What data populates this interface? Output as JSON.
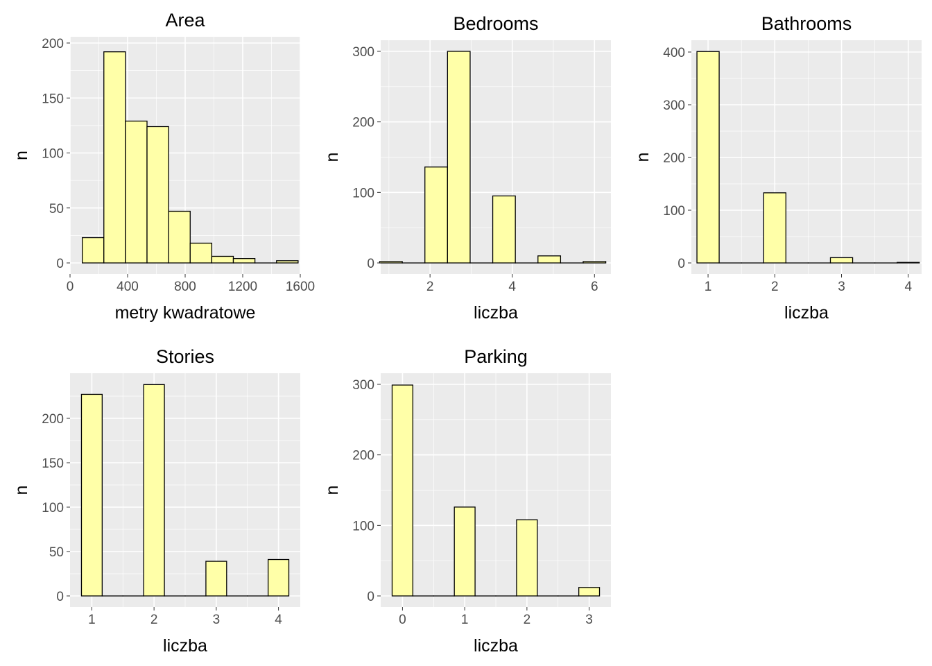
{
  "colors": {
    "panel_bg": "#EBEBEB",
    "grid": "#FFFFFF",
    "bar_fill": "#FFFFA8",
    "bar_stroke": "#000000",
    "tick_text": "#4D4D4D",
    "title_text": "#000000"
  },
  "chart_data": [
    {
      "type": "bar",
      "title": "Area",
      "xlabel": "metry kwadratowe",
      "ylabel": "n",
      "xlim": [
        0,
        1600
      ],
      "ylim": [
        0,
        200
      ],
      "x_ticks": [
        0,
        400,
        800,
        1200,
        1600
      ],
      "x_tick_labels": [
        "0",
        "400",
        "800",
        "1200",
        "1600"
      ],
      "y_ticks": [
        0,
        50,
        100,
        150,
        200
      ],
      "y_tick_labels": [
        "0",
        "50",
        "100",
        "150",
        "200"
      ],
      "bar_width": 150,
      "bars": [
        {
          "x": 160,
          "value": 23
        },
        {
          "x": 310,
          "value": 192
        },
        {
          "x": 460,
          "value": 129
        },
        {
          "x": 610,
          "value": 124
        },
        {
          "x": 760,
          "value": 47
        },
        {
          "x": 910,
          "value": 18
        },
        {
          "x": 1060,
          "value": 6
        },
        {
          "x": 1210,
          "value": 4
        },
        {
          "x": 1360,
          "value": 0
        },
        {
          "x": 1510,
          "value": 2
        }
      ]
    },
    {
      "type": "bar",
      "title": "Bedrooms",
      "xlabel": "liczba",
      "ylabel": "n",
      "xlim": [
        0.8,
        6.4
      ],
      "ylim": [
        0,
        300
      ],
      "x_ticks": [
        2,
        4,
        6
      ],
      "x_tick_labels": [
        "2",
        "4",
        "6"
      ],
      "y_ticks": [
        0,
        100,
        200,
        300
      ],
      "y_tick_labels": [
        "0",
        "100",
        "200",
        "300"
      ],
      "bar_width": 0.55,
      "bars": [
        {
          "x": 1.05,
          "value": 2
        },
        {
          "x": 1.6,
          "value": 0
        },
        {
          "x": 2.15,
          "value": 136
        },
        {
          "x": 2.7,
          "value": 300
        },
        {
          "x": 3.25,
          "value": 0
        },
        {
          "x": 3.8,
          "value": 95
        },
        {
          "x": 4.35,
          "value": 0
        },
        {
          "x": 4.9,
          "value": 10
        },
        {
          "x": 5.45,
          "value": 0
        },
        {
          "x": 6.0,
          "value": 2
        }
      ]
    },
    {
      "type": "bar",
      "title": "Bathrooms",
      "xlabel": "liczba",
      "ylabel": "n",
      "xlim": [
        0.75,
        4.2
      ],
      "ylim": [
        0,
        400
      ],
      "x_ticks": [
        1,
        2,
        3,
        4
      ],
      "x_tick_labels": [
        "1",
        "2",
        "3",
        "4"
      ],
      "y_ticks": [
        0,
        100,
        200,
        300,
        400
      ],
      "y_tick_labels": [
        "0",
        "100",
        "200",
        "300",
        "400"
      ],
      "bar_width": 0.333,
      "bars": [
        {
          "x": 1.0,
          "value": 401
        },
        {
          "x": 1.333,
          "value": 0
        },
        {
          "x": 1.667,
          "value": 0
        },
        {
          "x": 2.0,
          "value": 133
        },
        {
          "x": 2.333,
          "value": 0
        },
        {
          "x": 2.667,
          "value": 0
        },
        {
          "x": 3.0,
          "value": 10
        },
        {
          "x": 3.333,
          "value": 0
        },
        {
          "x": 3.667,
          "value": 0
        },
        {
          "x": 4.0,
          "value": 1
        }
      ]
    },
    {
      "type": "bar",
      "title": "Stories",
      "xlabel": "liczba",
      "ylabel": "n",
      "xlim": [
        0.65,
        4.35
      ],
      "ylim": [
        0,
        240
      ],
      "x_ticks": [
        1,
        2,
        3,
        4
      ],
      "x_tick_labels": [
        "1",
        "2",
        "3",
        "4"
      ],
      "y_ticks": [
        0,
        50,
        100,
        150,
        200
      ],
      "y_tick_labels": [
        "0",
        "50",
        "100",
        "150",
        "200"
      ],
      "bar_width": 0.333,
      "bars": [
        {
          "x": 1.0,
          "value": 227
        },
        {
          "x": 1.333,
          "value": 0
        },
        {
          "x": 1.667,
          "value": 0
        },
        {
          "x": 2.0,
          "value": 238
        },
        {
          "x": 2.333,
          "value": 0
        },
        {
          "x": 2.667,
          "value": 0
        },
        {
          "x": 3.0,
          "value": 39
        },
        {
          "x": 3.333,
          "value": 0
        },
        {
          "x": 3.667,
          "value": 0
        },
        {
          "x": 4.0,
          "value": 41
        }
      ]
    },
    {
      "type": "bar",
      "title": "Parking",
      "xlabel": "liczba",
      "ylabel": "n",
      "xlim": [
        -0.35,
        3.35
      ],
      "ylim": [
        0,
        300
      ],
      "x_ticks": [
        0,
        1,
        2,
        3
      ],
      "x_tick_labels": [
        "0",
        "1",
        "2",
        "3"
      ],
      "y_ticks": [
        0,
        100,
        200,
        300
      ],
      "y_tick_labels": [
        "0",
        "100",
        "200",
        "300"
      ],
      "bar_width": 0.333,
      "bars": [
        {
          "x": 0.0,
          "value": 299
        },
        {
          "x": 0.333,
          "value": 0
        },
        {
          "x": 0.667,
          "value": 0
        },
        {
          "x": 1.0,
          "value": 126
        },
        {
          "x": 1.333,
          "value": 0
        },
        {
          "x": 1.667,
          "value": 0
        },
        {
          "x": 2.0,
          "value": 108
        },
        {
          "x": 2.333,
          "value": 0
        },
        {
          "x": 2.667,
          "value": 0
        },
        {
          "x": 3.0,
          "value": 12
        }
      ]
    }
  ]
}
